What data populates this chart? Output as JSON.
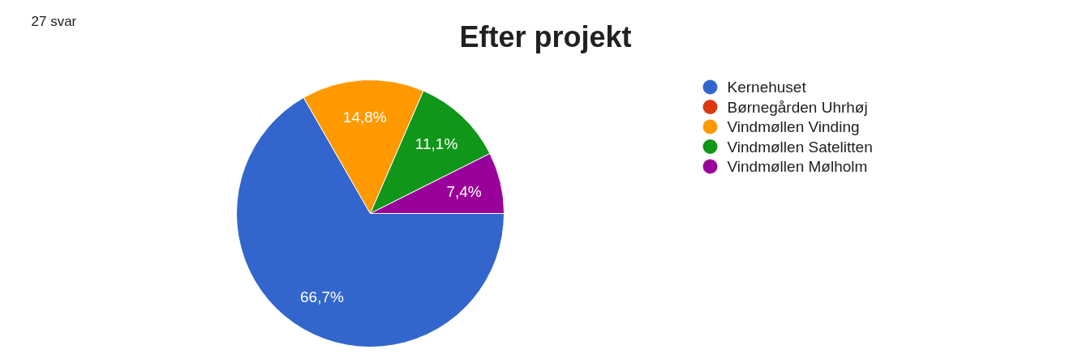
{
  "chart_data": {
    "type": "pie",
    "title": "Efter projekt",
    "annotations": [
      "27 svar"
    ],
    "categories": [
      "Kernehuset",
      "Børnegården Uhrhøj",
      "Vindmøllen Vinding",
      "Vindmøllen Satelitten",
      "Vindmøllen Mølholm"
    ],
    "values": [
      66.7,
      0,
      14.8,
      11.1,
      7.4
    ],
    "colors": [
      "#3366cc",
      "#dc3912",
      "#ff9900",
      "#109618",
      "#990099"
    ],
    "value_labels": [
      "66,7%",
      null,
      "14,8%",
      "11,1%",
      "7,4%"
    ],
    "legend": "right"
  }
}
